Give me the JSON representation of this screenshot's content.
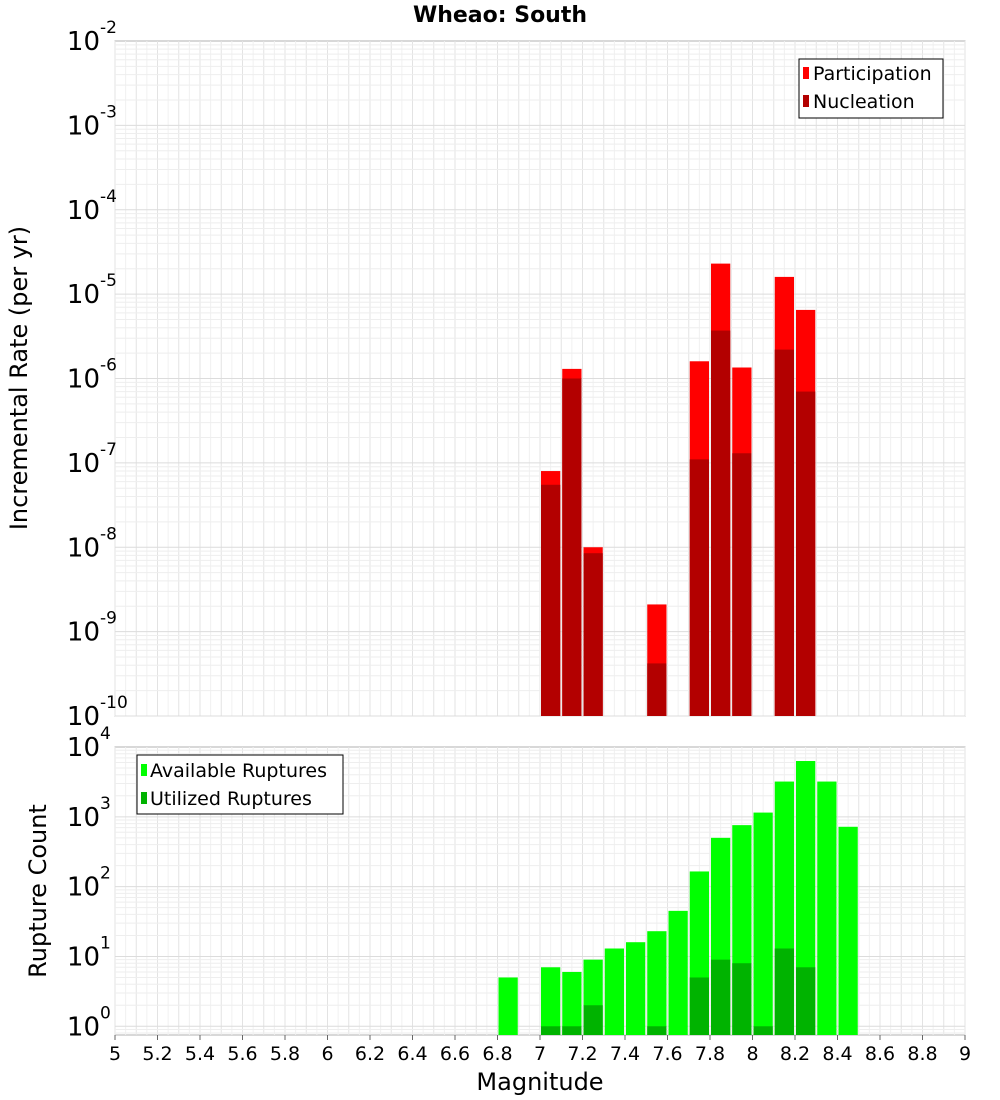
{
  "chart_data": [
    {
      "type": "bar",
      "title": "Wheao: South",
      "xlabel": "",
      "ylabel": "Incremental Rate (per yr)",
      "xlim": [
        5,
        9
      ],
      "ylim": [
        1e-10,
        0.01
      ],
      "yscale": "log",
      "grid": true,
      "legend_position": "top-right",
      "y_ticks": [
        {
          "base": "10",
          "exp": "-10"
        },
        {
          "base": "10",
          "exp": "-9"
        },
        {
          "base": "10",
          "exp": "-8"
        },
        {
          "base": "10",
          "exp": "-7"
        },
        {
          "base": "10",
          "exp": "-6"
        },
        {
          "base": "10",
          "exp": "-5"
        },
        {
          "base": "10",
          "exp": "-4"
        },
        {
          "base": "10",
          "exp": "-3"
        },
        {
          "base": "10",
          "exp": "-2"
        }
      ],
      "x": [
        7.05,
        7.15,
        7.25,
        7.55,
        7.75,
        7.85,
        7.95,
        8.15,
        8.25
      ],
      "series": [
        {
          "name": "Participation",
          "color": "#ff0000",
          "values": [
            8e-08,
            1.3e-06,
            1e-08,
            2.1e-09,
            1.6e-06,
            2.3e-05,
            1.35e-06,
            1.6e-05,
            6.5e-06
          ]
        },
        {
          "name": "Nucleation",
          "color": "#b30000",
          "values": [
            5.5e-08,
            1e-06,
            8.5e-09,
            4.2e-10,
            1.1e-07,
            3.7e-06,
            1.3e-07,
            2.2e-06,
            7e-07
          ]
        }
      ]
    },
    {
      "type": "bar",
      "title": "",
      "xlabel": "Magnitude",
      "ylabel": "Rupture Count",
      "xlim": [
        5,
        9
      ],
      "ylim": [
        0.75,
        10000
      ],
      "yscale": "log",
      "grid": true,
      "legend_position": "top-left",
      "y_ticks": [
        {
          "base": "10",
          "exp": "0",
          "value": 1
        },
        {
          "base": "10",
          "exp": "1",
          "value": 10
        },
        {
          "base": "10",
          "exp": "2",
          "value": 100
        },
        {
          "base": "10",
          "exp": "3",
          "value": 1000
        },
        {
          "base": "10",
          "exp": "4",
          "value": 10000
        }
      ],
      "x_tick_labels": [
        "5",
        "5.2",
        "5.4",
        "5.6",
        "5.8",
        "6",
        "6.2",
        "6.4",
        "6.6",
        "6.8",
        "7",
        "7.2",
        "7.4",
        "7.6",
        "7.8",
        "8",
        "8.2",
        "8.4",
        "8.6",
        "8.8",
        "9"
      ],
      "x": [
        6.85,
        7.05,
        7.15,
        7.25,
        7.35,
        7.45,
        7.55,
        7.65,
        7.75,
        7.85,
        7.95,
        8.05,
        8.15,
        8.25,
        8.35,
        8.45
      ],
      "series": [
        {
          "name": "Available Ruptures",
          "color": "#00ff00",
          "values": [
            5,
            7,
            6,
            9,
            13,
            16,
            23,
            45,
            165,
            500,
            760,
            1150,
            3200,
            6300,
            3200,
            720
          ]
        },
        {
          "name": "Utilized Ruptures",
          "color": "#00b300",
          "values": [
            0,
            1,
            1,
            2,
            0,
            0,
            1,
            0,
            5,
            9,
            8,
            1,
            13,
            7,
            0,
            0
          ]
        }
      ]
    }
  ]
}
